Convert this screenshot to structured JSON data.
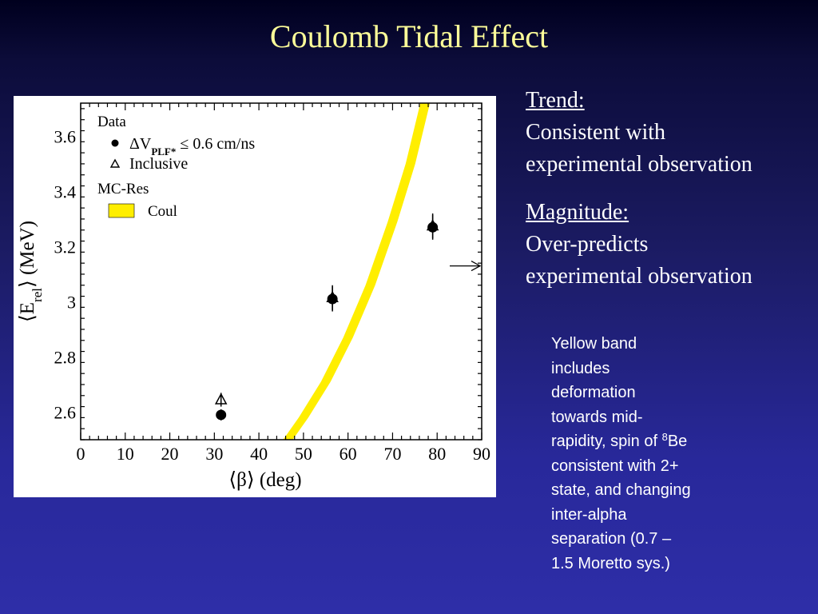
{
  "slide": {
    "title": "Coulomb Tidal Effect",
    "trend_heading": "Trend:",
    "trend_text": [
      "Consistent with",
      "experimental observation"
    ],
    "magnitude_heading": "Magnitude:",
    "magnitude_text": [
      "Over-predicts",
      "experimental observation"
    ],
    "note": {
      "lines": [
        "Yellow band",
        "includes",
        "deformation",
        "towards mid-"
      ],
      "line5_before": "rapidity, spin of ",
      "line5_sup": "8",
      "line5_after": "Be",
      "lines_after": [
        "consistent with 2+",
        "state, and changing",
        "inter-alpha",
        "separation (0.7 –",
        "1.5 Moretto sys.)"
      ]
    }
  },
  "chart_data": {
    "type": "scatter",
    "xlabel": "⟨β⟩ (deg)",
    "ylabel": "⟨E",
    "ylabel_sub": "rel",
    "ylabel_rest": "⟩ (MeV)",
    "xlim": [
      0,
      90
    ],
    "ylim": [
      2.5,
      3.72
    ],
    "xticks": [
      0,
      10,
      20,
      30,
      40,
      50,
      60,
      70,
      80,
      90
    ],
    "yticks": [
      2.6,
      2.8,
      3,
      3.2,
      3.4,
      3.6
    ],
    "ytick_labels": [
      "2.6",
      "2.8",
      "3",
      "3.2",
      "3.4",
      "3.6"
    ],
    "legend": {
      "data_title": "Data",
      "dv_label": "ΔV",
      "dv_sub": "PLF*",
      "dv_rest": " ≤ 0.6 cm/ns",
      "inclusive_label": "Inclusive",
      "mc_title": "MC-Res",
      "coul_label": "Coul"
    },
    "series": [
      {
        "name": "ΔV_PLF* ≤ 0.6 cm/ns",
        "marker": "circle",
        "points": [
          {
            "x": 31.5,
            "y": 2.59,
            "err": 0.02
          },
          {
            "x": 56.5,
            "y": 3.01,
            "err": 0.045
          },
          {
            "x": 79,
            "y": 3.27,
            "err": 0.045
          }
        ]
      },
      {
        "name": "Inclusive",
        "marker": "triangle",
        "points": [
          {
            "x": 31.5,
            "y": 2.645,
            "err": 0.025
          },
          {
            "x": 56.5,
            "y": 3.015,
            "err": 0.045
          },
          {
            "x": 79,
            "y": 3.275,
            "err": 0.045
          }
        ]
      },
      {
        "name": "Coul",
        "type": "band",
        "color": "#ffee00",
        "points": [
          {
            "x": 46.5,
            "y": 2.5
          },
          {
            "x": 50,
            "y": 2.58
          },
          {
            "x": 55,
            "y": 2.71
          },
          {
            "x": 60,
            "y": 2.87
          },
          {
            "x": 65,
            "y": 3.06
          },
          {
            "x": 70,
            "y": 3.29
          },
          {
            "x": 74,
            "y": 3.5
          },
          {
            "x": 77.3,
            "y": 3.72
          }
        ]
      }
    ],
    "arrow": {
      "y": 3.13
    }
  }
}
